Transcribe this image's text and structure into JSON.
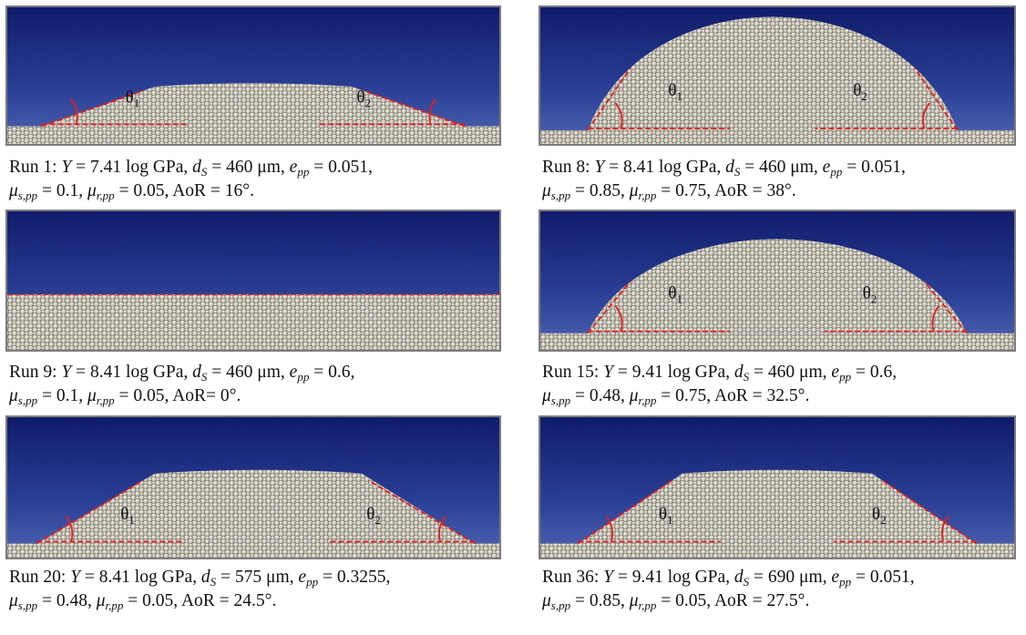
{
  "panels": [
    {
      "angles": [
        {
          "symbol": "θ",
          "index": "1"
        },
        {
          "symbol": "θ",
          "index": "2"
        }
      ],
      "caption": [
        [
          {
            "text": "Run 1: ",
            "style": "r"
          },
          {
            "text": "Y",
            "style": "i"
          },
          {
            "text": " = 7.41 log GPa, ",
            "style": "r"
          },
          {
            "text": "d",
            "style": "i"
          },
          {
            "text": "S",
            "style": "sub"
          },
          {
            "text": " = 460 μm, ",
            "style": "r"
          },
          {
            "text": "e",
            "style": "i"
          },
          {
            "text": "pp",
            "style": "sub"
          },
          {
            "text": " = 0.051,",
            "style": "r"
          }
        ],
        [
          {
            "text": "μ",
            "style": "i"
          },
          {
            "text": "s,pp",
            "style": "sub"
          },
          {
            "text": " = 0.1, ",
            "style": "r"
          },
          {
            "text": "μ",
            "style": "i"
          },
          {
            "text": "r,pp",
            "style": "sub"
          },
          {
            "text": " = 0.05, AoR = 16°.",
            "style": "r"
          }
        ]
      ]
    },
    {
      "angles": [
        {
          "symbol": "θ",
          "index": "1"
        },
        {
          "symbol": "θ",
          "index": "2"
        }
      ],
      "caption": [
        [
          {
            "text": "Run 8: ",
            "style": "r"
          },
          {
            "text": "Y",
            "style": "i"
          },
          {
            "text": " = 8.41 log GPa, ",
            "style": "r"
          },
          {
            "text": "d",
            "style": "i"
          },
          {
            "text": "S",
            "style": "sub"
          },
          {
            "text": " = 460 μm, ",
            "style": "r"
          },
          {
            "text": "e",
            "style": "i"
          },
          {
            "text": "pp",
            "style": "sub"
          },
          {
            "text": " = 0.051,",
            "style": "r"
          }
        ],
        [
          {
            "text": "μ",
            "style": "i"
          },
          {
            "text": "s,pp",
            "style": "sub"
          },
          {
            "text": " = 0.85, ",
            "style": "r"
          },
          {
            "text": "μ",
            "style": "i"
          },
          {
            "text": "r,pp",
            "style": "sub"
          },
          {
            "text": " = 0.75, AoR = 38°.",
            "style": "r"
          }
        ]
      ]
    },
    {
      "caption": [
        [
          {
            "text": "Run 9: ",
            "style": "r"
          },
          {
            "text": "Y",
            "style": "i"
          },
          {
            "text": " = 8.41 log GPa, ",
            "style": "r"
          },
          {
            "text": "d",
            "style": "i"
          },
          {
            "text": "S",
            "style": "sub"
          },
          {
            "text": " = 460 μm, ",
            "style": "r"
          },
          {
            "text": "e",
            "style": "i"
          },
          {
            "text": "pp",
            "style": "sub"
          },
          {
            "text": " = 0.6,",
            "style": "r"
          }
        ],
        [
          {
            "text": "μ",
            "style": "i"
          },
          {
            "text": "s,pp",
            "style": "sub"
          },
          {
            "text": " = 0.1, ",
            "style": "r"
          },
          {
            "text": "μ",
            "style": "i"
          },
          {
            "text": "r,pp",
            "style": "sub"
          },
          {
            "text": " = 0.05, AoR= 0°.",
            "style": "r"
          }
        ]
      ]
    },
    {
      "angles": [
        {
          "symbol": "θ",
          "index": "1"
        },
        {
          "symbol": "θ",
          "index": "2"
        }
      ],
      "caption": [
        [
          {
            "text": "Run 15: ",
            "style": "r"
          },
          {
            "text": "Y",
            "style": "i"
          },
          {
            "text": " = 9.41 log GPa, ",
            "style": "r"
          },
          {
            "text": "d",
            "style": "i"
          },
          {
            "text": "S",
            "style": "sub"
          },
          {
            "text": " = 460 μm, ",
            "style": "r"
          },
          {
            "text": "e",
            "style": "i"
          },
          {
            "text": "pp",
            "style": "sub"
          },
          {
            "text": " = 0.6,",
            "style": "r"
          }
        ],
        [
          {
            "text": "μ",
            "style": "i"
          },
          {
            "text": "s,pp",
            "style": "sub"
          },
          {
            "text": " = 0.48, ",
            "style": "r"
          },
          {
            "text": "μ",
            "style": "i"
          },
          {
            "text": "r,pp",
            "style": "sub"
          },
          {
            "text": " = 0.75, AoR = 32.5°.",
            "style": "r"
          }
        ]
      ]
    },
    {
      "angles": [
        {
          "symbol": "θ",
          "index": "1"
        },
        {
          "symbol": "θ",
          "index": "2"
        }
      ],
      "caption": [
        [
          {
            "text": "Run 20: ",
            "style": "r"
          },
          {
            "text": "Y",
            "style": "i"
          },
          {
            "text": " = 8.41 log GPa, ",
            "style": "r"
          },
          {
            "text": "d",
            "style": "i"
          },
          {
            "text": "S",
            "style": "sub"
          },
          {
            "text": " = 575 μm, ",
            "style": "r"
          },
          {
            "text": "e",
            "style": "i"
          },
          {
            "text": "pp",
            "style": "sub"
          },
          {
            "text": " = 0.3255,",
            "style": "r"
          }
        ],
        [
          {
            "text": "μ",
            "style": "i"
          },
          {
            "text": "s,pp",
            "style": "sub"
          },
          {
            "text": " = 0.48, ",
            "style": "r"
          },
          {
            "text": "μ",
            "style": "i"
          },
          {
            "text": "r,pp",
            "style": "sub"
          },
          {
            "text": " = 0.05, AoR = 24.5°.",
            "style": "r"
          }
        ]
      ]
    },
    {
      "angles": [
        {
          "symbol": "θ",
          "index": "1"
        },
        {
          "symbol": "θ",
          "index": "2"
        }
      ],
      "caption": [
        [
          {
            "text": "Run 36: ",
            "style": "r"
          },
          {
            "text": "Y",
            "style": "i"
          },
          {
            "text": " = 9.41 log GPa, ",
            "style": "r"
          },
          {
            "text": "d",
            "style": "i"
          },
          {
            "text": "S",
            "style": "sub"
          },
          {
            "text": " = 690 μm, ",
            "style": "r"
          },
          {
            "text": "e",
            "style": "i"
          },
          {
            "text": "pp",
            "style": "sub"
          },
          {
            "text": " = 0.051,",
            "style": "r"
          }
        ],
        [
          {
            "text": "μ",
            "style": "i"
          },
          {
            "text": "s,pp",
            "style": "sub"
          },
          {
            "text": " = 0.85, ",
            "style": "r"
          },
          {
            "text": "μ",
            "style": "i"
          },
          {
            "text": "r,pp",
            "style": "sub"
          },
          {
            "text": " = 0.05, AoR = 27.5°.",
            "style": "r"
          }
        ]
      ]
    }
  ]
}
